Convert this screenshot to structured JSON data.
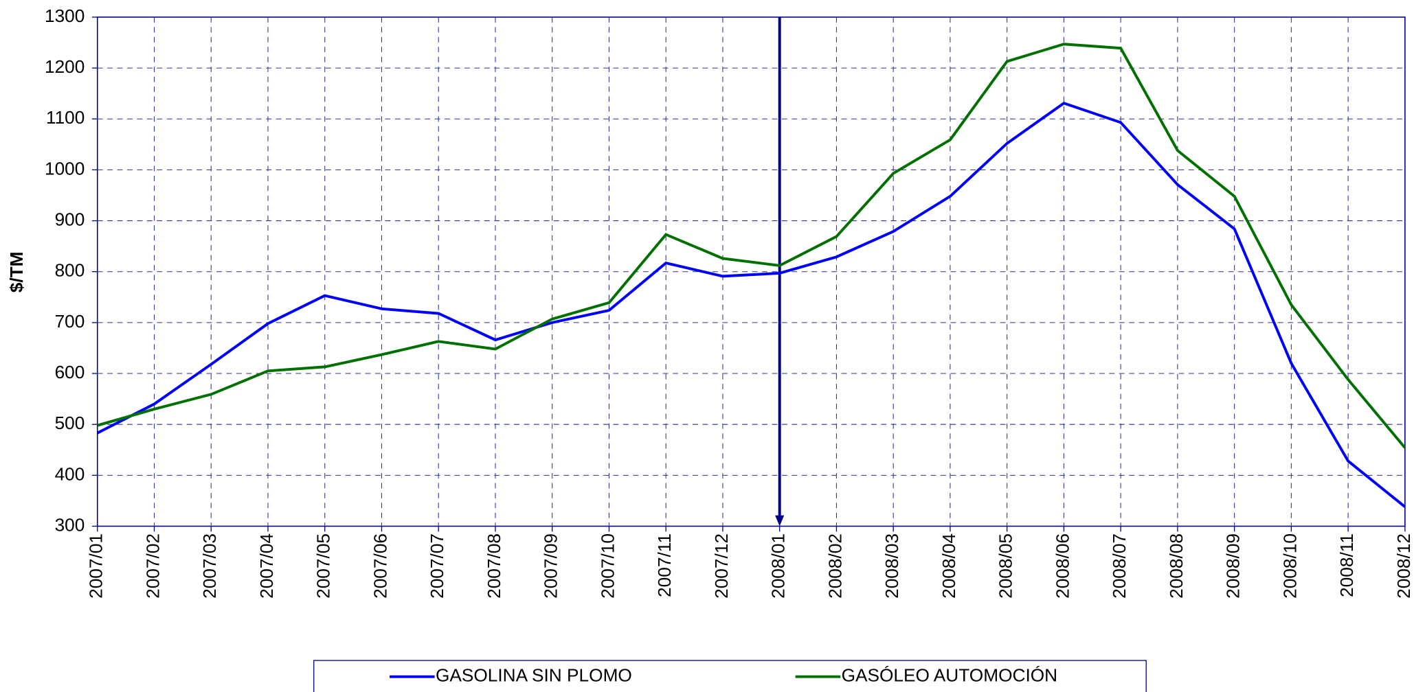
{
  "chart_data": {
    "type": "line",
    "y_label": "$/TM",
    "categories": [
      "2007/01",
      "2007/02",
      "2007/03",
      "2007/04",
      "2007/05",
      "2007/06",
      "2007/07",
      "2007/08",
      "2007/09",
      "2007/10",
      "2007/11",
      "2007/12",
      "2008/01",
      "2008/02",
      "2008/03",
      "2008/04",
      "2008/05",
      "2008/06",
      "2008/07",
      "2008/08",
      "2008/09",
      "2008/10",
      "2008/11",
      "2008/12"
    ],
    "series": [
      {
        "name": "GASOLINA SIN PLOMO",
        "color": "#0000ff",
        "values": [
          483,
          540,
          618,
          698,
          753,
          727,
          718,
          666,
          700,
          724,
          817,
          791,
          797,
          829,
          879,
          948,
          1052,
          1131,
          1093,
          971,
          884,
          620,
          428,
          338
        ]
      },
      {
        "name": "GASÓLEO AUTOMOCIÓN",
        "color": "#007000",
        "values": [
          498,
          530,
          559,
          605,
          613,
          637,
          663,
          648,
          707,
          739,
          873,
          826,
          812,
          869,
          993,
          1059,
          1213,
          1247,
          1239,
          1038,
          948,
          735,
          588,
          454
        ]
      }
    ],
    "ylim": [
      300,
      1300
    ],
    "yticks": [
      300,
      400,
      500,
      600,
      700,
      800,
      900,
      1000,
      1100,
      1200,
      1300
    ],
    "grid": true
  }
}
